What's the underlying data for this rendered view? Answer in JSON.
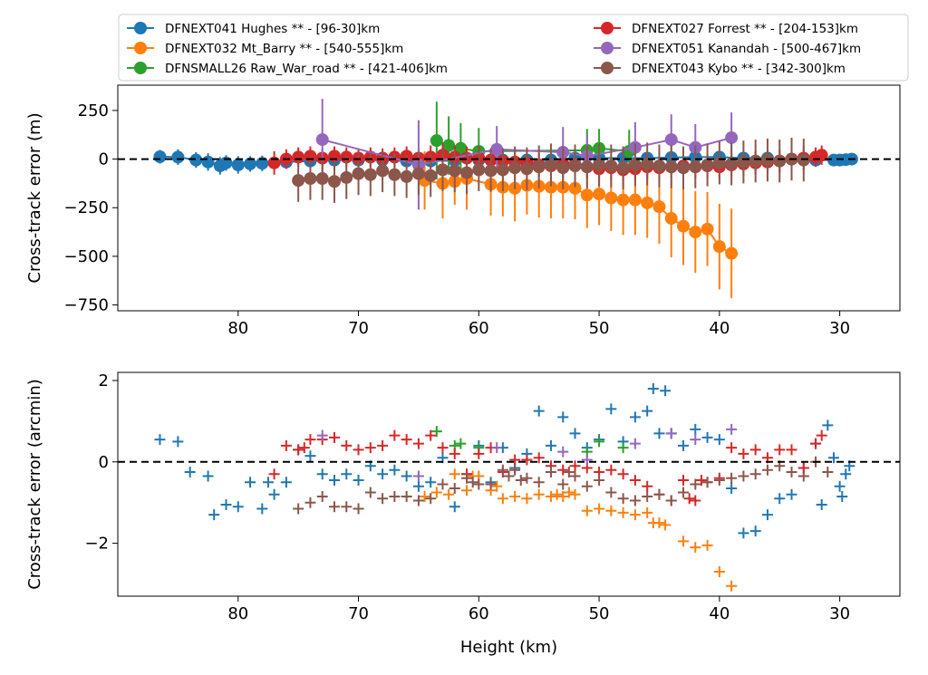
{
  "chart_data": [
    {
      "type": "scatter",
      "subtype": "errorbar-line",
      "xlabel": "",
      "ylabel": "Cross-track error (m)",
      "xlim": [
        90,
        25
      ],
      "ylim": [
        -780,
        380
      ],
      "xticks": [
        80,
        70,
        60,
        50,
        40,
        30
      ],
      "yticks": [
        250,
        0,
        -250,
        -500,
        -750
      ],
      "ytick_labels": [
        "250",
        "0",
        "−250",
        "−500",
        "−750"
      ],
      "reference_line": 0,
      "legend": {
        "placement": "top",
        "columns": 2,
        "entries": [
          "DFNEXT041 Hughes **  - [96-30]km",
          "DFNEXT032 Mt_Barry **  - [540-555]km",
          "DFNSMALL26 Raw_War_road **  - [421-406]km",
          "DFNEXT027 Forrest **  - [204-153]km",
          "DFNEXT051 Kanandah - [500-467]km",
          "DFNEXT043 Kybo **  - [342-300]km"
        ]
      },
      "series": [
        {
          "name": "DFNEXT041 Hughes **  - [96-30]km",
          "color": "#1f77b4",
          "x": [
            86.5,
            85,
            83.5,
            82.5,
            81.5,
            81,
            80,
            79,
            78,
            76,
            74,
            72,
            70,
            68,
            66,
            64,
            62,
            60,
            58,
            56,
            54,
            52,
            50,
            48,
            46,
            44,
            42,
            40,
            38,
            36,
            34,
            32,
            30.5,
            30,
            29.5,
            29
          ],
          "y": [
            12,
            10,
            -5,
            -15,
            -35,
            -20,
            -30,
            -25,
            -22,
            -15,
            -10,
            -5,
            -5,
            -5,
            -10,
            -10,
            -8,
            -5,
            -5,
            -5,
            -5,
            5,
            5,
            5,
            5,
            8,
            10,
            10,
            5,
            5,
            0,
            -5,
            -5,
            -5,
            -3,
            0
          ],
          "err": [
            35,
            40,
            40,
            45,
            45,
            40,
            45,
            40,
            40,
            35,
            30,
            30,
            25,
            25,
            30,
            30,
            30,
            25,
            25,
            25,
            25,
            25,
            20,
            20,
            25,
            25,
            25,
            25,
            20,
            20,
            20,
            20,
            15,
            15,
            15,
            15
          ]
        },
        {
          "name": "DFNEXT032 Mt_Barry **  - [540-555]km",
          "color": "#ff7f0e",
          "x": [
            64.5,
            63,
            62,
            61,
            59,
            58,
            57,
            56,
            55,
            54,
            53,
            52,
            51,
            50,
            49,
            48,
            47,
            46,
            45,
            44,
            43,
            42,
            41,
            40,
            39
          ],
          "y": [
            -110,
            -125,
            -115,
            -100,
            -130,
            -145,
            -150,
            -135,
            -140,
            -145,
            -145,
            -150,
            -185,
            -180,
            -200,
            -210,
            -210,
            -225,
            -245,
            -305,
            -345,
            -375,
            -360,
            -450,
            -485
          ],
          "err": [
            150,
            180,
            120,
            160,
            160,
            150,
            170,
            150,
            160,
            160,
            160,
            160,
            170,
            160,
            170,
            180,
            180,
            180,
            190,
            200,
            200,
            210,
            190,
            220,
            230
          ]
        },
        {
          "name": "DFNSMALL26 Raw_War_road **  - [421-406]km",
          "color": "#2ca02c",
          "x": [
            63.5,
            62.5,
            61.5,
            60,
            51,
            50,
            47.5
          ],
          "y": [
            95,
            70,
            55,
            40,
            45,
            55,
            40
          ],
          "err": [
            200,
            150,
            130,
            120,
            110,
            100,
            110
          ]
        },
        {
          "name": "DFNEXT027 Forrest **  - [204-153]km",
          "color": "#d62728",
          "x": [
            77,
            76,
            75,
            74,
            73,
            72,
            71,
            70,
            69,
            68,
            67,
            66,
            65,
            64,
            63,
            62,
            61,
            60,
            59,
            58,
            57,
            56,
            55,
            54,
            53,
            52,
            51,
            50,
            49,
            48,
            47,
            46,
            45,
            44,
            43,
            42,
            41,
            40,
            39,
            38,
            37,
            36,
            35,
            34,
            33,
            32,
            31.5
          ],
          "y": [
            -20,
            0,
            10,
            15,
            5,
            15,
            10,
            5,
            10,
            5,
            10,
            15,
            5,
            10,
            20,
            10,
            5,
            5,
            -5,
            -10,
            -15,
            -20,
            -30,
            -35,
            -25,
            -30,
            -40,
            -50,
            -45,
            -55,
            -50,
            -40,
            -45,
            -40,
            -35,
            -40,
            -35,
            -40,
            -30,
            -25,
            -20,
            -15,
            -10,
            0,
            5,
            10,
            20
          ],
          "err": [
            60,
            50,
            50,
            50,
            50,
            50,
            50,
            50,
            50,
            50,
            50,
            50,
            50,
            60,
            60,
            60,
            60,
            60,
            60,
            60,
            60,
            60,
            60,
            60,
            60,
            60,
            60,
            60,
            60,
            60,
            60,
            60,
            60,
            60,
            60,
            60,
            60,
            60,
            60,
            60,
            60,
            60,
            60,
            60,
            60,
            50,
            50
          ]
        },
        {
          "name": "DFNEXT051 Kanandah - [500-467]km",
          "color": "#9467bd",
          "x": [
            73,
            65,
            58.5,
            53,
            51,
            47,
            44,
            42,
            39
          ],
          "y": [
            100,
            -30,
            50,
            35,
            15,
            60,
            100,
            60,
            110
          ],
          "err": [
            210,
            230,
            120,
            130,
            110,
            130,
            130,
            120,
            130
          ]
        },
        {
          "name": "DFNEXT043 Kybo **  - [342-300]km",
          "color": "#8c564b",
          "x": [
            75,
            74,
            73,
            72,
            71,
            70,
            69,
            68,
            67,
            66,
            65,
            64,
            63,
            62,
            61,
            60,
            59,
            58,
            57,
            56,
            55,
            54,
            53,
            52,
            51,
            50,
            49,
            48,
            47,
            46,
            45,
            44,
            43,
            42,
            41,
            40,
            39,
            38,
            37,
            36,
            35,
            34,
            33
          ],
          "y": [
            -110,
            -100,
            -100,
            -115,
            -95,
            -75,
            -80,
            -60,
            -80,
            -90,
            -75,
            -85,
            -55,
            -60,
            -70,
            -55,
            -60,
            -55,
            -45,
            -50,
            -40,
            -30,
            -45,
            -35,
            -40,
            -30,
            -35,
            -45,
            -30,
            -25,
            -35,
            -40,
            -45,
            -40,
            -30,
            -20,
            -25,
            -15,
            -10,
            -5,
            -10,
            0,
            -5
          ],
          "err": [
            110,
            110,
            110,
            110,
            110,
            110,
            110,
            110,
            110,
            110,
            110,
            110,
            110,
            110,
            110,
            110,
            110,
            110,
            110,
            110,
            110,
            110,
            110,
            110,
            110,
            110,
            110,
            110,
            110,
            110,
            110,
            110,
            110,
            110,
            110,
            110,
            110,
            110,
            110,
            110,
            110,
            110,
            110
          ]
        }
      ]
    },
    {
      "type": "scatter",
      "marker": "plus",
      "xlabel": "Height (km)",
      "ylabel": "Cross-track error (arcmin)",
      "xlim": [
        90,
        25
      ],
      "ylim": [
        -3.3,
        2.2
      ],
      "xticks": [
        80,
        70,
        60,
        50,
        40,
        30
      ],
      "yticks": [
        2,
        0,
        -2
      ],
      "ytick_labels": [
        "2",
        "0",
        "−2"
      ],
      "reference_line": 0,
      "series": [
        {
          "name": "DFNEXT041 Hughes **  - [96-30]km",
          "color": "#1f77b4",
          "x": [
            86.5,
            85,
            84,
            82.5,
            82,
            81,
            80,
            79,
            78,
            77.5,
            77,
            76,
            75,
            74,
            73,
            72,
            71,
            70,
            69,
            68,
            67,
            66,
            65,
            64,
            63,
            62,
            61,
            60,
            59,
            58,
            57,
            56,
            55,
            54,
            53,
            52,
            51,
            50,
            49,
            48,
            47,
            46,
            45.5,
            45,
            44.5,
            44,
            43,
            42,
            41,
            40,
            39,
            38,
            37,
            36,
            35,
            34,
            33,
            32,
            31.5,
            31,
            30.5,
            30,
            29.8,
            29.5,
            29.2
          ],
          "x_extra_note": "",
          "y": [
            0.55,
            0.5,
            -0.25,
            -0.35,
            -1.3,
            -1.05,
            -1.1,
            -0.5,
            -1.15,
            -0.5,
            -0.8,
            -0.5,
            0.3,
            0.15,
            -0.3,
            -0.45,
            -0.3,
            -0.45,
            -0.1,
            -0.3,
            -0.2,
            -0.35,
            -0.6,
            -0.5,
            0.1,
            -1.1,
            -0.3,
            0.4,
            -0.5,
            0.35,
            -0.15,
            0.2,
            1.25,
            0.4,
            1.1,
            0.7,
            0.35,
            0.55,
            1.3,
            0.5,
            1.1,
            1.25,
            1.8,
            0.7,
            1.75,
            0.7,
            0.4,
            0.8,
            0.6,
            0.55,
            -0.65,
            -1.75,
            -1.7,
            -1.3,
            -0.9,
            -0.8,
            -0.15,
            0.45,
            -1.05,
            0.9,
            0.1,
            -0.6,
            -0.85,
            -0.3,
            -0.1
          ],
          "y_note": ""
        },
        {
          "name": "DFNEXT032 Mt_Barry **  - [540-555]km",
          "color": "#ff7f0e",
          "x": [
            64.5,
            63.5,
            62.5,
            61,
            60,
            59,
            58,
            57,
            56,
            55,
            54,
            53.5,
            53,
            52.5,
            52,
            51,
            50,
            49,
            48,
            47,
            46,
            45.5,
            45,
            44.5,
            43,
            42,
            41,
            40,
            39,
            62,
            60.5,
            58.5
          ],
          "y": [
            -0.85,
            -0.75,
            -0.8,
            -0.7,
            -0.35,
            -0.7,
            -0.9,
            -0.85,
            -0.9,
            -0.8,
            -0.85,
            -0.8,
            -0.85,
            -0.75,
            -0.8,
            -1.2,
            -1.15,
            -1.2,
            -1.25,
            -1.3,
            -1.25,
            -1.5,
            -1.5,
            -1.55,
            -1.95,
            -2.1,
            -2.05,
            -2.7,
            -3.05,
            -0.3,
            -0.35,
            -0.6
          ]
        },
        {
          "name": "DFNSMALL26 Raw_War_road **  - [421-406]km",
          "color": "#2ca02c",
          "x": [
            63.5,
            62,
            61.5,
            60,
            51,
            50,
            48
          ],
          "y": [
            0.75,
            0.4,
            0.45,
            0.35,
            0.25,
            0.5,
            0.35
          ]
        },
        {
          "name": "DFNEXT027 Forrest **  - [204-153]km",
          "color": "#d62728",
          "x": [
            77,
            76,
            75,
            74.5,
            74,
            73,
            72,
            71,
            70,
            69,
            68,
            67,
            66,
            65,
            64,
            63,
            62,
            61,
            60,
            59,
            58,
            57,
            56,
            55,
            54,
            53,
            52,
            51,
            50,
            49,
            48,
            47,
            46,
            45,
            44,
            43,
            42.5,
            42,
            41.5,
            41,
            40,
            39,
            38,
            37,
            36,
            35,
            34,
            33,
            32,
            31.5
          ],
          "y": [
            -0.3,
            0.4,
            0.3,
            0.35,
            0.55,
            0.55,
            0.6,
            0.4,
            0.3,
            0.35,
            0.4,
            0.65,
            0.55,
            0.45,
            0.65,
            0.35,
            0.2,
            -0.3,
            0.2,
            0.35,
            -0.25,
            0.05,
            0.05,
            0.1,
            -0.1,
            -0.2,
            -0.1,
            -0.15,
            -0.25,
            -0.2,
            -0.3,
            -0.45,
            -0.6,
            -0.8,
            -0.95,
            -0.45,
            -0.9,
            -0.95,
            -0.45,
            -0.5,
            -0.4,
            0.35,
            0.2,
            0.3,
            0.1,
            0.3,
            0.3,
            -0.15,
            0.45,
            0.65
          ]
        },
        {
          "name": "DFNEXT051 Kanandah - [500-467]km",
          "color": "#9467bd",
          "x": [
            73,
            65,
            58.5,
            53,
            51,
            47,
            44,
            42,
            39
          ],
          "y": [
            0.65,
            -0.35,
            0.35,
            0.25,
            0.05,
            0.45,
            0.7,
            0.55,
            0.8
          ]
        },
        {
          "name": "DFNEXT043 Kybo **  - [342-300]km",
          "color": "#8c564b",
          "x": [
            75,
            74,
            73,
            72,
            71,
            70,
            69,
            68,
            67,
            66,
            65,
            64,
            63,
            62,
            61,
            60,
            59,
            58,
            57,
            56,
            55,
            54,
            53,
            52,
            51,
            50,
            49,
            48,
            47,
            46,
            45,
            44,
            43,
            42,
            41,
            40,
            39,
            38,
            37,
            36,
            35,
            34,
            33,
            32,
            31,
            60.5,
            57.5,
            56.5,
            52.5
          ],
          "y": [
            -1.15,
            -1.0,
            -0.85,
            -1.1,
            -1.1,
            -1.15,
            -0.75,
            -0.9,
            -0.85,
            -0.85,
            -0.95,
            -0.9,
            -0.55,
            -0.65,
            -0.4,
            -0.55,
            -0.55,
            -0.2,
            -0.2,
            -0.4,
            -0.5,
            -0.25,
            -0.55,
            -0.35,
            -0.6,
            -0.45,
            -0.75,
            -0.9,
            -0.95,
            -0.85,
            -0.8,
            -0.95,
            -0.75,
            -0.55,
            -0.5,
            -0.45,
            -0.4,
            -0.35,
            -0.3,
            -0.2,
            -0.1,
            -0.25,
            -0.35,
            0.0,
            -0.25,
            -0.5,
            -0.35,
            -0.45,
            -0.25
          ]
        }
      ]
    }
  ]
}
